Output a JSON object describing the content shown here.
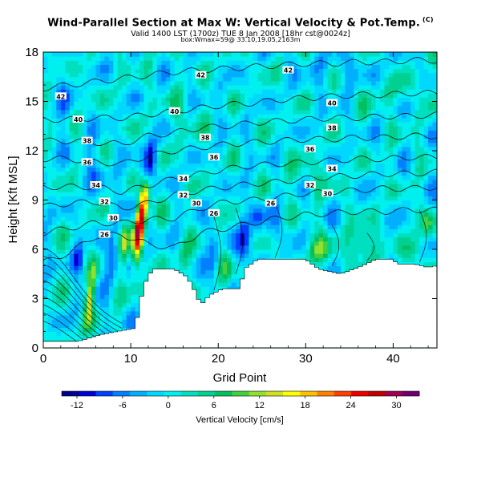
{
  "chart_data": {
    "type": "heatmap",
    "title": "Wind-Parallel Section at Max W: Vertical Velocity & Pot.Temp.",
    "title_mark": "(C)",
    "subtitle_1": "Valid 1400 LST (1700z) TUE 8 Jan 2008 [18hr cst@0024z]",
    "subtitle_2": "box:Wmax=59@ 33.10,19.05,2163m",
    "xlabel": "Grid Point",
    "ylabel": "Height [Kft MSL]",
    "xlim": [
      0,
      45
    ],
    "ylim": [
      0,
      18
    ],
    "xticks": [
      0,
      10,
      20,
      30,
      40
    ],
    "yticks": [
      0,
      3,
      6,
      9,
      12,
      15,
      18
    ],
    "terrain_kft": [
      [
        0,
        0.4
      ],
      [
        4,
        0.4
      ],
      [
        6.5,
        0.8
      ],
      [
        10.5,
        1.2
      ],
      [
        11.5,
        3.8
      ],
      [
        12.5,
        4.8
      ],
      [
        15,
        4.8
      ],
      [
        16.5,
        4.3
      ],
      [
        17.5,
        3.3
      ],
      [
        18,
        2.6
      ],
      [
        19,
        3.2
      ],
      [
        20.5,
        3.6
      ],
      [
        22.5,
        3.6
      ],
      [
        23,
        4.8
      ],
      [
        24.5,
        5.4
      ],
      [
        30,
        5.4
      ],
      [
        31.5,
        4.8
      ],
      [
        34,
        4.5
      ],
      [
        36.5,
        5.0
      ],
      [
        38,
        5.4
      ],
      [
        40,
        5.4
      ],
      [
        40.5,
        5.1
      ],
      [
        42.5,
        5.1
      ],
      [
        44,
        4.9
      ],
      [
        45,
        5.0
      ]
    ],
    "w_features": [
      {
        "x": 11.0,
        "z": 7.5,
        "peak": 30,
        "sx": 0.6,
        "sz": 2.2,
        "slope": 0.18
      },
      {
        "x": 11.8,
        "z": 9.2,
        "peak": 14,
        "sx": 0.5,
        "sz": 1.2,
        "slope": 0.2
      },
      {
        "x": 9.3,
        "z": 6.5,
        "peak": 12,
        "sx": 0.5,
        "sz": 1.5,
        "slope": 0.15
      },
      {
        "x": 5.3,
        "z": 3.0,
        "peak": 14,
        "sx": 0.5,
        "sz": 1.8,
        "slope": 0.25
      },
      {
        "x": 12.3,
        "z": 11.5,
        "peak": -12,
        "sx": 0.7,
        "sz": 1.2,
        "slope": 0.25
      },
      {
        "x": 10.5,
        "z": 9.0,
        "peak": -6,
        "sx": 1.0,
        "sz": 2.0,
        "slope": 0.3
      },
      {
        "x": 7.8,
        "z": 5.5,
        "peak": -7,
        "sx": 0.7,
        "sz": 1.6,
        "slope": 0.1
      },
      {
        "x": 4.0,
        "z": 5.5,
        "peak": -8,
        "sx": 0.6,
        "sz": 1.0,
        "slope": 0.0
      },
      {
        "x": 16.0,
        "z": 5.5,
        "peak": 6,
        "sx": 0.8,
        "sz": 1.0,
        "slope": 0.0
      },
      {
        "x": 19.5,
        "z": 5.5,
        "peak": -7,
        "sx": 0.6,
        "sz": 1.7,
        "slope": 0.0
      },
      {
        "x": 21.0,
        "z": 5.0,
        "peak": 6,
        "sx": 0.7,
        "sz": 1.2,
        "slope": 0.0
      },
      {
        "x": 23.0,
        "z": 6.5,
        "peak": -11,
        "sx": 0.8,
        "sz": 1.5,
        "slope": 0.0
      },
      {
        "x": 24.5,
        "z": 8.0,
        "peak": -5,
        "sx": 0.8,
        "sz": 1.0,
        "slope": 0.0
      },
      {
        "x": 26.5,
        "z": 7.5,
        "peak": -4,
        "sx": 1.0,
        "sz": 1.2,
        "slope": 0.0
      },
      {
        "x": 31.5,
        "z": 6.0,
        "peak": 8,
        "sx": 1.5,
        "sz": 0.9,
        "slope": 0.0
      },
      {
        "x": 36.5,
        "z": 6.3,
        "peak": 10,
        "sx": 1.2,
        "sz": 1.0,
        "slope": 0.0
      },
      {
        "x": 42.5,
        "z": 6.0,
        "peak": 6,
        "sx": 1.0,
        "sz": 0.8,
        "slope": 0.0
      },
      {
        "x": 44.0,
        "z": 7.5,
        "peak": 7,
        "sx": 0.8,
        "sz": 0.8,
        "slope": 0.0
      },
      {
        "x": 30.0,
        "z": 10.5,
        "peak": 3,
        "sx": 3.0,
        "sz": 1.0,
        "slope": 0.0
      },
      {
        "x": 40.0,
        "z": 15.5,
        "peak": 3,
        "sx": 3.0,
        "sz": 1.0,
        "slope": 0.0
      },
      {
        "x": 16.0,
        "z": 14.0,
        "peak": 3,
        "sx": 2.0,
        "sz": 1.5,
        "slope": 0.0
      },
      {
        "x": 6.0,
        "z": 11.0,
        "peak": -4,
        "sx": 1.5,
        "sz": 1.5,
        "slope": 0.0
      },
      {
        "x": 2.0,
        "z": 15.0,
        "peak": -3,
        "sx": 1.5,
        "sz": 2.0,
        "slope": 0.0
      },
      {
        "x": 34.0,
        "z": 17.0,
        "peak": -3,
        "sx": 4.0,
        "sz": 1.0,
        "slope": 0.0
      }
    ],
    "isentropes": [
      {
        "level": 26,
        "x": [
          0,
          3,
          6,
          9,
          12,
          15,
          18,
          21,
          24,
          27,
          30,
          33,
          36,
          39,
          42,
          45
        ],
        "z": [
          5.2,
          5.8,
          6.8,
          6.9,
          6.3,
          6.1,
          7.0,
          7.3,
          7.6,
          7.9,
          8.1,
          8.2,
          8.3,
          8.3,
          8.4,
          8.4
        ],
        "labels": [
          {
            "text": "26",
            "x": 7.0,
            "z": 6.9
          },
          {
            "text": "26",
            "x": 19.5,
            "z": 8.2
          },
          {
            "text": "26",
            "x": 26.0,
            "z": 8.8
          }
        ]
      },
      {
        "level": 30,
        "x": [
          0,
          3,
          6,
          9,
          12,
          15,
          18,
          21,
          24,
          27,
          30,
          33,
          36,
          39,
          42,
          45
        ],
        "z": [
          7.0,
          7.3,
          7.6,
          7.6,
          7.8,
          7.9,
          8.5,
          8.9,
          9.0,
          9.2,
          9.4,
          9.5,
          9.6,
          9.7,
          9.7,
          9.8
        ],
        "labels": [
          {
            "text": "30",
            "x": 8.0,
            "z": 7.9
          },
          {
            "text": "30",
            "x": 17.5,
            "z": 8.8
          },
          {
            "text": "30",
            "x": 32.5,
            "z": 9.4
          }
        ]
      },
      {
        "level": 32,
        "x": [
          0,
          3,
          6,
          9,
          12,
          15,
          18,
          21,
          24,
          27,
          30,
          33,
          36,
          39,
          42,
          45
        ],
        "z": [
          8.6,
          8.8,
          8.9,
          8.5,
          8.8,
          9.3,
          9.6,
          9.8,
          10.0,
          10.1,
          10.3,
          10.4,
          10.5,
          10.6,
          10.6,
          10.7
        ],
        "labels": [
          {
            "text": "32",
            "x": 7.0,
            "z": 8.9
          },
          {
            "text": "32",
            "x": 16.0,
            "z": 9.3
          },
          {
            "text": "32",
            "x": 30.5,
            "z": 9.9
          }
        ]
      },
      {
        "level": 34,
        "x": [
          0,
          3,
          6,
          9,
          12,
          15,
          18,
          21,
          24,
          27,
          30,
          33,
          36,
          39,
          42,
          45
        ],
        "z": [
          9.8,
          9.8,
          9.8,
          9.5,
          9.9,
          10.3,
          10.6,
          10.9,
          11.1,
          11.2,
          11.3,
          11.4,
          11.5,
          11.5,
          11.6,
          11.6
        ],
        "labels": [
          {
            "text": "34",
            "x": 6.0,
            "z": 9.9
          },
          {
            "text": "34",
            "x": 16.0,
            "z": 10.3
          },
          {
            "text": "34",
            "x": 33.0,
            "z": 10.9
          }
        ]
      },
      {
        "level": 36,
        "x": [
          0,
          3,
          6,
          9,
          12,
          15,
          18,
          21,
          24,
          27,
          30,
          33,
          36,
          39,
          42,
          45
        ],
        "z": [
          11.5,
          11.5,
          11.3,
          11.2,
          11.7,
          12.0,
          12.2,
          12.4,
          12.5,
          12.6,
          12.7,
          12.7,
          12.8,
          12.8,
          12.9,
          12.9
        ],
        "labels": [
          {
            "text": "36",
            "x": 5.0,
            "z": 11.3
          },
          {
            "text": "36",
            "x": 19.5,
            "z": 11.6
          },
          {
            "text": "36",
            "x": 30.5,
            "z": 12.1
          }
        ]
      },
      {
        "level": 38,
        "x": [
          0,
          3,
          6,
          9,
          12,
          15,
          18,
          21,
          24,
          27,
          30,
          33,
          36,
          39,
          42,
          45
        ],
        "z": [
          12.6,
          12.6,
          12.5,
          12.4,
          12.9,
          13.1,
          13.4,
          13.5,
          13.7,
          13.8,
          13.9,
          14.0,
          14.0,
          14.1,
          14.1,
          14.2
        ],
        "labels": [
          {
            "text": "38",
            "x": 5.0,
            "z": 12.6
          },
          {
            "text": "38",
            "x": 18.5,
            "z": 12.8
          },
          {
            "text": "38",
            "x": 33.0,
            "z": 13.4
          }
        ]
      },
      {
        "level": 40,
        "x": [
          0,
          3,
          6,
          9,
          12,
          15,
          18,
          21,
          24,
          27,
          30,
          33,
          36,
          39,
          42,
          45
        ],
        "z": [
          13.9,
          13.9,
          14.0,
          14.0,
          14.2,
          14.4,
          14.6,
          14.8,
          14.9,
          15.1,
          15.2,
          15.3,
          15.4,
          15.4,
          15.5,
          15.5
        ],
        "labels": [
          {
            "text": "40",
            "x": 4.0,
            "z": 13.9
          },
          {
            "text": "40",
            "x": 15.0,
            "z": 14.4
          },
          {
            "text": "40",
            "x": 33.0,
            "z": 14.9
          }
        ]
      },
      {
        "level": 42,
        "x": [
          0,
          3,
          6,
          9,
          12,
          15,
          18,
          21,
          24,
          27,
          30,
          33,
          36,
          39,
          42,
          45
        ],
        "z": [
          15.8,
          16.0,
          16.2,
          16.4,
          16.6,
          16.8,
          16.9,
          17.0,
          17.1,
          17.2,
          17.3,
          17.3,
          17.4,
          17.4,
          17.5,
          17.5
        ],
        "labels": [
          {
            "text": "42",
            "x": 2.0,
            "z": 15.3
          },
          {
            "text": "42",
            "x": 18.0,
            "z": 16.6
          },
          {
            "text": "42",
            "x": 28.0,
            "z": 16.9
          }
        ]
      }
    ],
    "low_level_contours_kft": [
      1.0,
      1.3,
      1.6,
      1.9,
      2.2,
      2.5,
      2.8,
      3.1,
      3.4,
      3.7
    ],
    "colorbar": {
      "label": "Vertical Velocity [cm/s]",
      "min": -14,
      "max": 33,
      "ticks": [
        -12,
        -6,
        0,
        6,
        12,
        18,
        24,
        30
      ],
      "colors": [
        "#00008b",
        "#0000d5",
        "#0040ff",
        "#0080ff",
        "#00b0ff",
        "#00d8ff",
        "#00f0f0",
        "#00e0c0",
        "#00d090",
        "#00c060",
        "#40d040",
        "#90e030",
        "#d0e020",
        "#ffff00",
        "#ffc000",
        "#ff8000",
        "#ff4000",
        "#ee0000",
        "#c00000",
        "#a00050",
        "#700070"
      ]
    }
  }
}
